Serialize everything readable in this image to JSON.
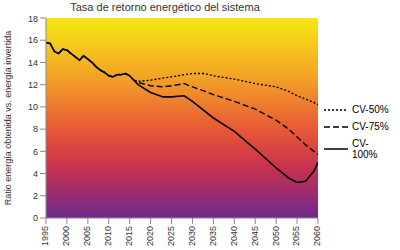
{
  "chart_data": {
    "type": "line",
    "title": "Tasa de retorno energético del sistema",
    "y_label": "Ratio energía obtenida vs. energía invertida",
    "x": [
      1995,
      1996,
      1997,
      1998,
      1999,
      2000,
      2001,
      2002,
      2003,
      2004,
      2005,
      2006,
      2007,
      2008,
      2009,
      2010,
      2011,
      2012,
      2013,
      2014,
      2015,
      2016,
      2017,
      2020,
      2023,
      2025,
      2028,
      2030,
      2033,
      2035,
      2040,
      2045,
      2050,
      2053,
      2055,
      2057,
      2059,
      2060
    ],
    "series": [
      {
        "name": "CV-50%",
        "color": "#000000",
        "line_style": "dotted",
        "values": [
          15.8,
          15.7,
          15.0,
          14.8,
          15.2,
          15.1,
          14.8,
          14.5,
          14.2,
          14.6,
          14.3,
          14.0,
          13.6,
          13.3,
          13.1,
          12.8,
          12.7,
          12.9,
          12.9,
          13.0,
          12.8,
          12.4,
          12.3,
          12.4,
          12.6,
          12.7,
          12.9,
          13.0,
          13.0,
          12.8,
          12.5,
          12.1,
          11.8,
          11.4,
          11.0,
          10.7,
          10.4,
          10.2
        ]
      },
      {
        "name": "CV-75%",
        "color": "#000000",
        "line_style": "dashed",
        "values": [
          15.8,
          15.7,
          15.0,
          14.8,
          15.2,
          15.1,
          14.8,
          14.5,
          14.2,
          14.6,
          14.3,
          14.0,
          13.6,
          13.3,
          13.1,
          12.8,
          12.7,
          12.9,
          12.9,
          13.0,
          12.8,
          12.4,
          12.2,
          11.9,
          11.8,
          11.9,
          12.1,
          11.8,
          11.4,
          11.1,
          10.5,
          9.8,
          8.8,
          8.0,
          7.3,
          6.6,
          6.0,
          5.7
        ]
      },
      {
        "name": "CV-100%",
        "color": "#000000",
        "line_style": "solid",
        "values": [
          15.8,
          15.7,
          15.0,
          14.8,
          15.2,
          15.1,
          14.8,
          14.5,
          14.2,
          14.6,
          14.3,
          14.0,
          13.6,
          13.3,
          13.1,
          12.8,
          12.7,
          12.9,
          12.9,
          13.0,
          12.8,
          12.4,
          12.0,
          11.3,
          10.9,
          10.9,
          11.0,
          10.5,
          9.6,
          9.0,
          7.8,
          6.2,
          4.5,
          3.6,
          3.2,
          3.3,
          4.2,
          5.0
        ]
      }
    ],
    "xlim": [
      1995,
      2060
    ],
    "xticks": [
      1995,
      2000,
      2005,
      2010,
      2015,
      2020,
      2025,
      2030,
      2035,
      2040,
      2045,
      2050,
      2055,
      2060
    ],
    "ylim": [
      0,
      18
    ],
    "yticks": [
      0,
      2,
      4,
      6,
      8,
      10,
      12,
      14,
      16,
      18
    ],
    "grid": false,
    "legend": "right"
  }
}
